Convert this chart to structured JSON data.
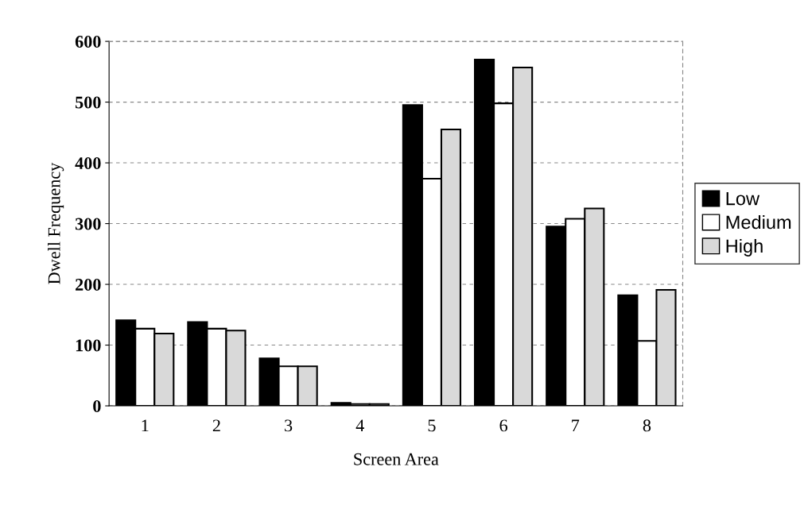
{
  "chart_data": {
    "type": "bar",
    "xlabel": "Screen Area",
    "ylabel": "Dwell Frequency",
    "categories": [
      "1",
      "2",
      "3",
      "4",
      "5",
      "6",
      "7",
      "8"
    ],
    "series": [
      {
        "name": "Low",
        "color": "#000000",
        "values": [
          141,
          138,
          78,
          5,
          495,
          570,
          295,
          182
        ]
      },
      {
        "name": "Medium",
        "color": "#ffffff",
        "values": [
          127,
          127,
          65,
          3,
          374,
          498,
          308,
          107
        ]
      },
      {
        "name": "High",
        "color": "#d9d9d9",
        "values": [
          119,
          124,
          65,
          3,
          455,
          557,
          325,
          191
        ]
      }
    ],
    "ylim": [
      0,
      600
    ],
    "yticks": [
      0,
      100,
      200,
      300,
      400,
      500,
      600
    ],
    "grid": "y",
    "legend": "right"
  }
}
